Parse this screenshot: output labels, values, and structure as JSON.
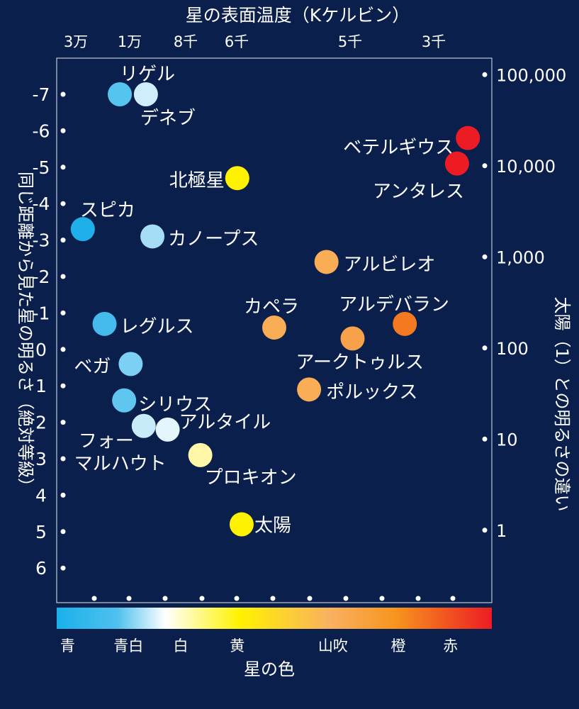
{
  "chart_data": {
    "type": "scatter",
    "title": "",
    "top_axis_label": "星の表面温度（Kケルビン）",
    "top_ticks": [
      {
        "label": "3万",
        "temp": 30000
      },
      {
        "label": "1万",
        "temp": 10000
      },
      {
        "label": "8千",
        "temp": 8000
      },
      {
        "label": "6千",
        "temp": 6000
      },
      {
        "label": "5千",
        "temp": 5000
      },
      {
        "label": "3千",
        "temp": 3000
      }
    ],
    "left_axis_label": "同じ距離から見た星の明るさ（絶対等級）",
    "left_ticks": [
      "-7",
      "-6",
      "-5",
      "-4",
      "-3",
      "-2",
      "-1",
      "0",
      "1",
      "2",
      "3",
      "4",
      "5",
      "6"
    ],
    "ylim": [
      -7.5,
      6.6
    ],
    "right_axis_label": "太陽（1）との明るさの違い",
    "right_ticks": [
      {
        "label": "100,000",
        "mag": -7.5
      },
      {
        "label": "10,000",
        "mag": -5.0
      },
      {
        "label": "1,000",
        "mag": -2.5
      },
      {
        "label": "100",
        "mag": 0.0
      },
      {
        "label": "10",
        "mag": 2.5
      },
      {
        "label": "1",
        "mag": 5.0
      }
    ],
    "color_bar_label": "星の色",
    "color_bar_stops": [
      {
        "pos": 0.0,
        "color": "#1ab0ea"
      },
      {
        "pos": 0.14,
        "color": "#4fc1ee"
      },
      {
        "pos": 0.25,
        "color": "#ffffff"
      },
      {
        "pos": 0.42,
        "color": "#fff200"
      },
      {
        "pos": 0.63,
        "color": "#f9b060"
      },
      {
        "pos": 0.78,
        "color": "#f7941d"
      },
      {
        "pos": 1.0,
        "color": "#ed1c24"
      }
    ],
    "color_names": [
      {
        "name": "青",
        "pos": 0.025
      },
      {
        "name": "青白",
        "pos": 0.165
      },
      {
        "name": "白",
        "pos": 0.285
      },
      {
        "name": "黄",
        "pos": 0.415
      },
      {
        "name": "山吹",
        "pos": 0.635
      },
      {
        "name": "橙",
        "pos": 0.785
      },
      {
        "name": "赤",
        "pos": 0.905
      }
    ],
    "stars": [
      {
        "name": "リゲル",
        "temp_pos": 0.145,
        "mag": -7.0,
        "color": "#55c4ef"
      },
      {
        "name": "デネブ",
        "temp_pos": 0.205,
        "mag": -7.0,
        "color": "#cfeefb"
      },
      {
        "name": "ベテルギウス",
        "temp_pos": 0.945,
        "mag": -5.8,
        "color": "#ed1c24"
      },
      {
        "name": "アンタレス",
        "temp_pos": 0.92,
        "mag": -5.1,
        "color": "#ed1c24"
      },
      {
        "name": "北極星",
        "temp_pos": 0.415,
        "mag": -4.7,
        "color": "#fff200"
      },
      {
        "name": "スピカ",
        "temp_pos": 0.06,
        "mag": -3.3,
        "color": "#1fb0ea"
      },
      {
        "name": "カノープス",
        "temp_pos": 0.22,
        "mag": -3.1,
        "color": "#a6ddf6"
      },
      {
        "name": "アルビレオ",
        "temp_pos": 0.62,
        "mag": -2.4,
        "color": "#f9ad55"
      },
      {
        "name": "アルデバラン",
        "temp_pos": 0.8,
        "mag": -0.7,
        "color": "#f47920"
      },
      {
        "name": "レグルス",
        "temp_pos": 0.11,
        "mag": -0.7,
        "color": "#45baed"
      },
      {
        "name": "カペラ",
        "temp_pos": 0.5,
        "mag": -0.6,
        "color": "#f9ad55"
      },
      {
        "name": "アークトゥルス",
        "temp_pos": 0.68,
        "mag": -0.3,
        "color": "#f7a14a"
      },
      {
        "name": "ベガ",
        "temp_pos": 0.17,
        "mag": 0.4,
        "color": "#7cd0f3"
      },
      {
        "name": "ポルックス",
        "temp_pos": 0.58,
        "mag": 1.1,
        "color": "#f9ad55"
      },
      {
        "name": "シリウス",
        "temp_pos": 0.155,
        "mag": 1.4,
        "color": "#5ec6ef"
      },
      {
        "name": "フォーマルハウト",
        "temp_pos": 0.2,
        "mag": 2.1,
        "color": "#c8ebfa"
      },
      {
        "name": "アルタイル",
        "temp_pos": 0.255,
        "mag": 2.2,
        "color": "#e4f5fc"
      },
      {
        "name": "プロキオン",
        "temp_pos": 0.33,
        "mag": 2.9,
        "color": "#fff6a8"
      },
      {
        "name": "太陽",
        "temp_pos": 0.425,
        "mag": 4.8,
        "color": "#fff200"
      }
    ]
  }
}
